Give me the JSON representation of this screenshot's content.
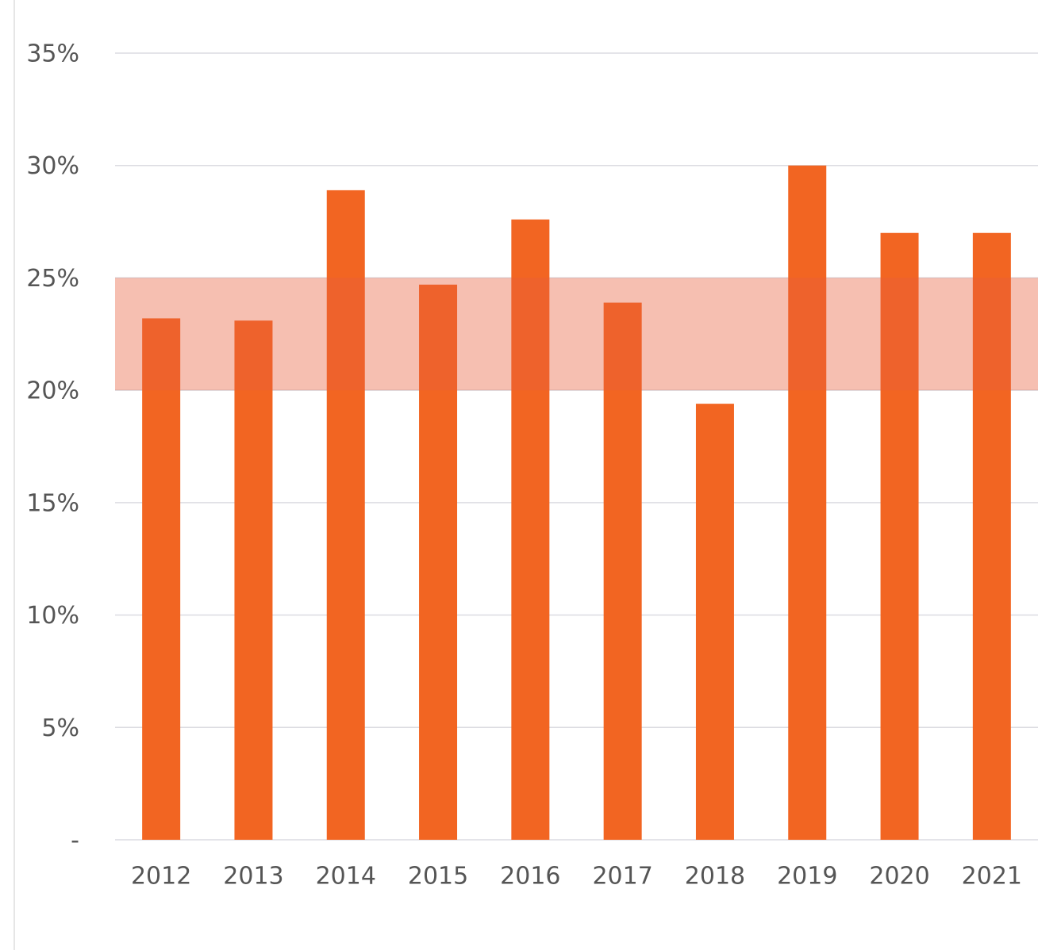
{
  "chart_data": {
    "type": "bar",
    "categories": [
      "2012",
      "2013",
      "2014",
      "2015",
      "2016",
      "2017",
      "2018",
      "2019",
      "2020",
      "2021"
    ],
    "values": [
      23.2,
      23.1,
      28.9,
      24.7,
      27.6,
      23.9,
      19.4,
      30.0,
      27.0,
      27.0
    ],
    "color": "#f26522",
    "ylim": [
      0,
      35
    ],
    "yticks": [
      {
        "value": 0,
        "label": "-"
      },
      {
        "value": 5,
        "label": "5%"
      },
      {
        "value": 10,
        "label": "10%"
      },
      {
        "value": 15,
        "label": "15%"
      },
      {
        "value": 20,
        "label": "20%"
      },
      {
        "value": 25,
        "label": "25%"
      },
      {
        "value": 30,
        "label": "30%"
      },
      {
        "value": 35,
        "label": "35%"
      }
    ],
    "grid": true,
    "highlight_band": {
      "range": [
        20,
        25
      ],
      "color": "#e8603c"
    }
  }
}
